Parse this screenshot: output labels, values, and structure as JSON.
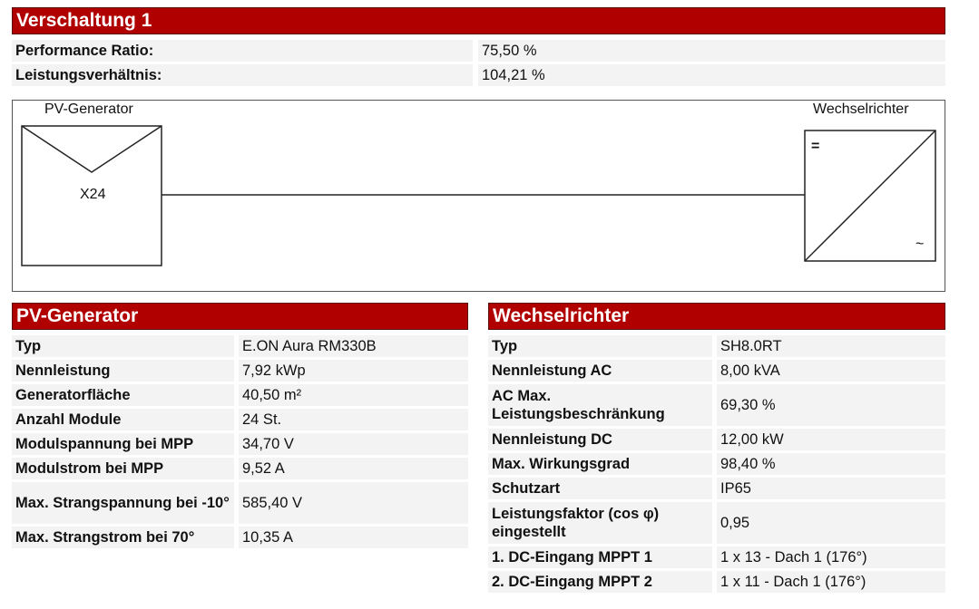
{
  "title": "Verschaltung 1",
  "summary": [
    {
      "label": "Performance Ratio:",
      "value": "75,50 %"
    },
    {
      "label": "Leistungsverhältnis:",
      "value": "104,21 %"
    }
  ],
  "diagram": {
    "generator_label": "PV-Generator",
    "module_count": "X24",
    "inverter_label": "Wechselrichter",
    "dc_symbol": "=",
    "ac_symbol": "~"
  },
  "pv_generator": {
    "title": "PV-Generator",
    "rows": [
      {
        "label": "Typ",
        "value": "E.ON Aura RM330B"
      },
      {
        "label": "Nennleistung",
        "value": "7,92 kWp"
      },
      {
        "label": "Generatorfläche",
        "value": "40,50 m²"
      },
      {
        "label": "Anzahl Module",
        "value": "24 St."
      },
      {
        "label": "Modulspannung bei MPP",
        "value": "34,70 V"
      },
      {
        "label": "Modulstrom bei MPP",
        "value": "9,52 A"
      },
      {
        "label": "Max. Strangspannung bei -10°",
        "value": "585,40 V"
      },
      {
        "label": "Max. Strangstrom bei 70°",
        "value": "10,35 A"
      }
    ]
  },
  "inverter": {
    "title": "Wechselrichter",
    "rows": [
      {
        "label": "Typ",
        "value": "SH8.0RT"
      },
      {
        "label": "Nennleistung AC",
        "value": "8,00 kVA"
      },
      {
        "label": "AC Max. Leistungsbeschränkung",
        "value": "69,30 %"
      },
      {
        "label": "Nennleistung DC",
        "value": "12,00 kW"
      },
      {
        "label": "Max. Wirkungsgrad",
        "value": "98,40 %"
      },
      {
        "label": "Schutzart",
        "value": "IP65"
      },
      {
        "label": "Leistungsfaktor (cos φ) eingestellt",
        "value": "0,95"
      },
      {
        "label": "1. DC-Eingang MPPT 1",
        "value": "1 x 13 - Dach 1 (176°)"
      },
      {
        "label": "2. DC-Eingang MPPT 2",
        "value": "1 x 11 - Dach 1 (176°)"
      }
    ]
  },
  "colors": {
    "header_bg": "#b00000",
    "cell_bg": "#f3f3f3"
  }
}
